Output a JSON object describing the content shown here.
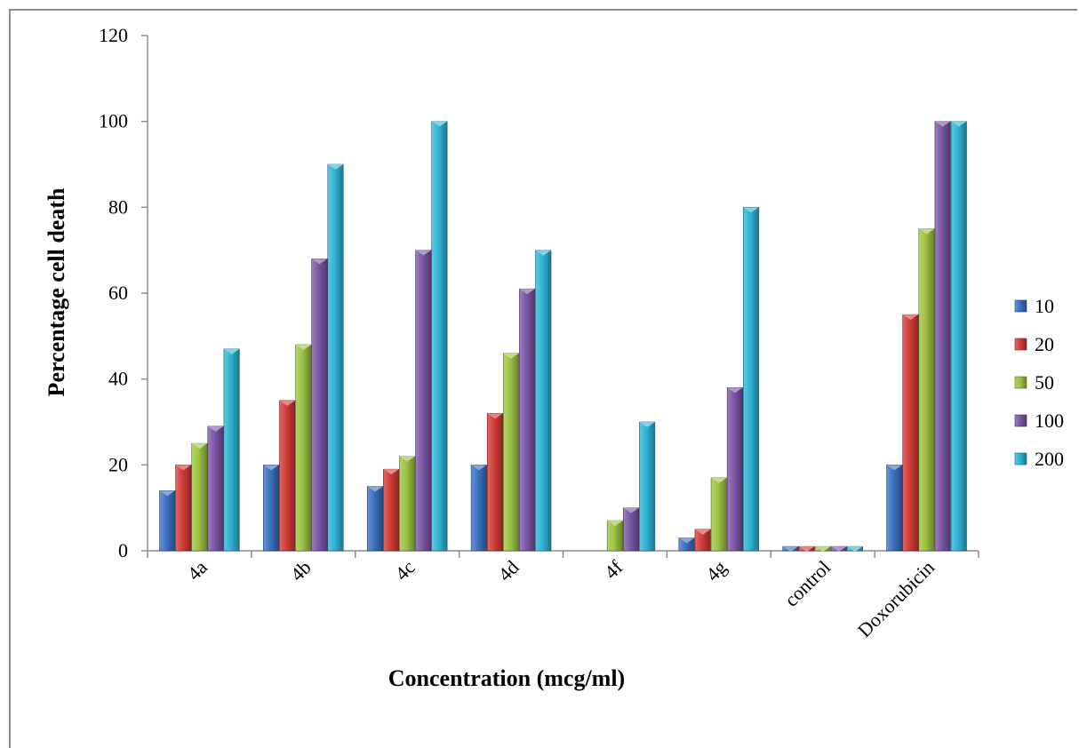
{
  "chart_data": {
    "type": "bar",
    "title": "",
    "xlabel": "Concentration (mcg/ml)",
    "ylabel": "Percentage cell death",
    "ylim": [
      0,
      120
    ],
    "yticks": [
      0,
      20,
      40,
      60,
      80,
      100,
      120
    ],
    "grid": false,
    "legend_position": "right",
    "categories": [
      "4a",
      "4b",
      "4c",
      "4d",
      "4f",
      "4g",
      "control",
      "Doxorubicin"
    ],
    "series": [
      {
        "name": "10",
        "color": "#3a70c0",
        "values": [
          14,
          20,
          15,
          20,
          0,
          3,
          1,
          20
        ]
      },
      {
        "name": "20",
        "color": "#d23a36",
        "values": [
          20,
          35,
          19,
          32,
          0,
          5,
          1,
          55
        ]
      },
      {
        "name": "50",
        "color": "#9cc342",
        "values": [
          25,
          48,
          22,
          46,
          7,
          17,
          1,
          75
        ]
      },
      {
        "name": "100",
        "color": "#7b55a6",
        "values": [
          29,
          68,
          70,
          61,
          10,
          38,
          1,
          100
        ]
      },
      {
        "name": "200",
        "color": "#2eb3d4",
        "values": [
          47,
          90,
          100,
          70,
          30,
          80,
          1,
          100
        ]
      }
    ]
  }
}
